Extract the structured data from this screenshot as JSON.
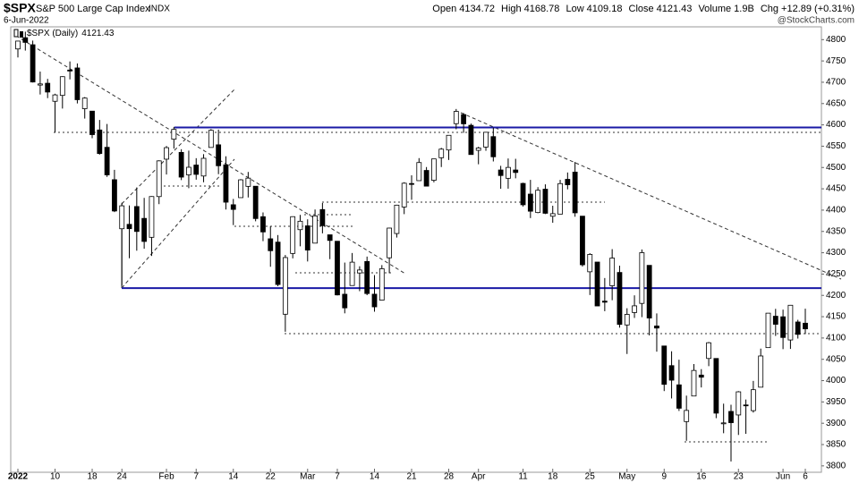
{
  "header": {
    "symbol": "$SPX",
    "name": "S&P 500 Large Cap Index",
    "exchange": "INDX",
    "date": "6-Jun-2022",
    "watermark": "@StockCharts.com",
    "quote_labels": [
      "Open",
      "High",
      "Low",
      "Close",
      "Volume",
      "Chg"
    ],
    "volume": "1.9B",
    "change": "+12.89 (+0.31%)"
  },
  "chart_data": {
    "type": "candlestick",
    "name": "$SPX (Daily)",
    "categories": [
      "2022",
      null,
      null,
      null,
      null,
      "10",
      null,
      null,
      null,
      null,
      "18",
      null,
      null,
      null,
      "24",
      null,
      null,
      null,
      null,
      null,
      "Feb",
      null,
      null,
      null,
      "7",
      null,
      null,
      null,
      null,
      "14",
      null,
      null,
      null,
      null,
      "22",
      null,
      null,
      null,
      null,
      "Mar",
      null,
      null,
      null,
      "7",
      null,
      null,
      null,
      null,
      "14",
      null,
      null,
      null,
      null,
      "21",
      null,
      null,
      null,
      null,
      "28",
      null,
      null,
      null,
      "Apr",
      null,
      null,
      null,
      null,
      null,
      "11",
      null,
      null,
      null,
      "18",
      null,
      null,
      null,
      null,
      "25",
      null,
      null,
      null,
      null,
      "May",
      null,
      null,
      null,
      null,
      "9",
      null,
      null,
      null,
      null,
      "16",
      null,
      null,
      null,
      null,
      "23",
      null,
      null,
      null,
      null,
      null,
      "Jun",
      null,
      null,
      "6"
    ],
    "open": [
      4778.14,
      4804.51,
      4787.99,
      4693.39,
      4697.66,
      4655.34,
      4669.14,
      4728.59,
      4733.56,
      4637.99,
      4632.24,
      4588.03,
      4547.35,
      4471.38,
      4356.32,
      4366.64,
      4408.43,
      4380.58,
      4336.19,
      4431.79,
      4519.57,
      4566.39,
      4535.41,
      4482.79,
      4505.75,
      4480.02,
      4547.0,
      4553.24,
      4506.27,
      4412.61,
      4429.28,
      4455.75,
      4456.06,
      4384.57,
      4332.74,
      4324.93,
      4155.77,
      4298.38,
      4354.17,
      4363.14,
      4322.56,
      4401.31,
      4342.12,
      4327.01,
      4202.66,
      4223.1,
      4252.55,
      4279.5,
      4202.75,
      4188.82,
      4288.14,
      4345.11,
      4407.34,
      4462.4,
      4469.1,
      4493.1,
      4469.98,
      4522.91,
      4541.09,
      4602.86,
      4624.2,
      4599.02,
      4540.32,
      4547.97,
      4572.45,
      4494.17,
      4474.65,
      4494.15,
      4462.64,
      4437.59,
      4394.3,
      4449.12,
      4385.63,
      4390.63,
      4472.26,
      4489.17,
      4385.83,
      4255.34,
      4278.14,
      4186.52,
      4222.58,
      4253.75,
      4130.61,
      4159.78,
      4181.18,
      4270.43,
      4128.17,
      4081.27,
      4035.18,
      3990.08,
      3903.95,
      3963.9,
      4013.02,
      4052.0,
      4051.98,
      3899.0,
      3927.76,
      3919.42,
      3942.94,
      3929.59,
      3984.6,
      4077.43,
      4151.09,
      4149.78,
      4095.41,
      4137.57,
      4134.72
    ],
    "high": [
      4796.64,
      4818.62,
      4797.7,
      4725.01,
      4707.95,
      4673.02,
      4714.13,
      4748.83,
      4744.13,
      4665.13,
      4632.24,
      4611.55,
      4602.11,
      4494.52,
      4417.35,
      4411.01,
      4453.23,
      4428.74,
      4432.72,
      4516.89,
      4550.49,
      4595.31,
      4542.88,
      4539.66,
      4521.86,
      4531.32,
      4590.03,
      4588.92,
      4526.33,
      4426.22,
      4472.77,
      4489.55,
      4456.06,
      4394.6,
      4362.12,
      4341.51,
      4294.73,
      4385.34,
      4388.84,
      4378.45,
      4401.48,
      4416.78,
      4342.12,
      4327.01,
      4276.94,
      4299.4,
      4268.28,
      4291.01,
      4247.57,
      4271.05,
      4358.9,
      4412.67,
      4465.4,
      4481.75,
      4522.0,
      4501.07,
      4520.58,
      4546.03,
      4575.65,
      4637.3,
      4627.77,
      4603.07,
      4548.7,
      4583.5,
      4593.45,
      4503.94,
      4521.16,
      4520.41,
      4464.35,
      4471.0,
      4453.92,
      4460.46,
      4410.31,
      4471.03,
      4488.29,
      4512.94,
      4385.83,
      4299.02,
      4278.14,
      4240.71,
      4308.45,
      4269.68,
      4169.81,
      4200.1,
      4307.66,
      4270.43,
      4157.69,
      4081.27,
      4068.82,
      4049.09,
      3964.8,
      4038.88,
      4026.97,
      4090.72,
      4051.98,
      3945.96,
      3943.42,
      3975.45,
      3955.68,
      3999.33,
      4075.14,
      4158.49,
      4168.34,
      4166.54,
      4177.51,
      4142.67,
      4168.78
    ],
    "low": [
      4758.17,
      4774.27,
      4699.44,
      4671.26,
      4662.74,
      4582.24,
      4638.27,
      4706.71,
      4650.29,
      4614.75,
      4568.7,
      4530.2,
      4477.95,
      4395.34,
      4222.62,
      4287.11,
      4304.8,
      4309.5,
      4292.46,
      4414.02,
      4483.53,
      4544.32,
      4470.39,
      4451.5,
      4471.47,
      4465.4,
      4547.0,
      4484.31,
      4401.41,
      4364.84,
      4429.28,
      4429.68,
      4373.81,
      4327.22,
      4267.11,
      4221.51,
      4114.65,
      4286.83,
      4315.12,
      4279.54,
      4322.56,
      4345.56,
      4284.98,
      4199.85,
      4157.87,
      4223.1,
      4209.8,
      4200.49,
      4161.72,
      4187.9,
      4251.99,
      4335.65,
      4390.57,
      4424.3,
      4469.1,
      4455.81,
      4465.17,
      4501.07,
      4517.69,
      4589.66,
      4581.32,
      4530.41,
      4507.57,
      4539.21,
      4514.17,
      4450.04,
      4450.3,
      4474.6,
      4408.38,
      4381.34,
      4392.7,
      4390.77,
      4370.3,
      4390.63,
      4448.76,
      4384.47,
      4267.62,
      4200.82,
      4175.04,
      4162.9,
      4188.63,
      4124.28,
      4062.51,
      4147.08,
      4148.91,
      4106.01,
      4067.91,
      3975.48,
      3958.17,
      3928.82,
      3858.87,
      3963.9,
      3983.99,
      4033.93,
      3911.91,
      3876.58,
      3810.32,
      3872.53,
      3875.13,
      3925.03,
      3984.6,
      4077.43,
      4104.88,
      4073.85,
      4074.37,
      4098.67,
      4109.18
    ],
    "close": [
      4796.56,
      4793.54,
      4700.58,
      4696.05,
      4677.03,
      4670.29,
      4713.07,
      4726.35,
      4659.03,
      4662.85,
      4577.11,
      4532.76,
      4482.73,
      4397.94,
      4410.13,
      4356.45,
      4349.93,
      4326.51,
      4431.85,
      4515.55,
      4546.54,
      4589.38,
      4477.44,
      4500.53,
      4483.87,
      4521.54,
      4587.18,
      4504.08,
      4418.64,
      4401.67,
      4471.07,
      4475.01,
      4380.26,
      4348.87,
      4304.76,
      4225.5,
      4288.7,
      4384.65,
      4373.94,
      4306.26,
      4386.54,
      4363.49,
      4328.87,
      4201.09,
      4170.7,
      4277.88,
      4259.52,
      4204.31,
      4173.11,
      4262.45,
      4357.86,
      4411.67,
      4463.12,
      4461.18,
      4511.61,
      4456.24,
      4520.16,
      4543.06,
      4575.52,
      4631.6,
      4602.45,
      4530.41,
      4545.86,
      4582.64,
      4525.12,
      4481.15,
      4500.21,
      4488.28,
      4412.53,
      4397.45,
      4446.59,
      4392.59,
      4391.69,
      4462.21,
      4459.45,
      4393.66,
      4271.78,
      4296.12,
      4175.2,
      4183.96,
      4287.5,
      4131.93,
      4155.38,
      4175.48,
      4300.17,
      4146.87,
      4123.34,
      3991.24,
      4001.05,
      3935.18,
      3930.08,
      4023.89,
      4008.01,
      4088.85,
      3923.68,
      3900.79,
      3901.36,
      3973.75,
      3941.48,
      3978.73,
      4057.84,
      4158.24,
      4132.15,
      4101.23,
      4176.82,
      4108.54,
      4121.43
    ],
    "up_color": "#ffffff",
    "down_color": "#000000",
    "levels": [
      {
        "value": 4594,
        "color": "#1a1aa6"
      },
      {
        "value": 4217,
        "color": "#1a1aa6"
      }
    ],
    "ylim": [
      3785,
      4830
    ],
    "yticks": [
      3800,
      3850,
      3900,
      3950,
      4000,
      4050,
      4100,
      4150,
      4200,
      4250,
      4300,
      4350,
      4400,
      4450,
      4500,
      4550,
      4600,
      4650,
      4700,
      4750,
      4800
    ],
    "grid": false
  }
}
